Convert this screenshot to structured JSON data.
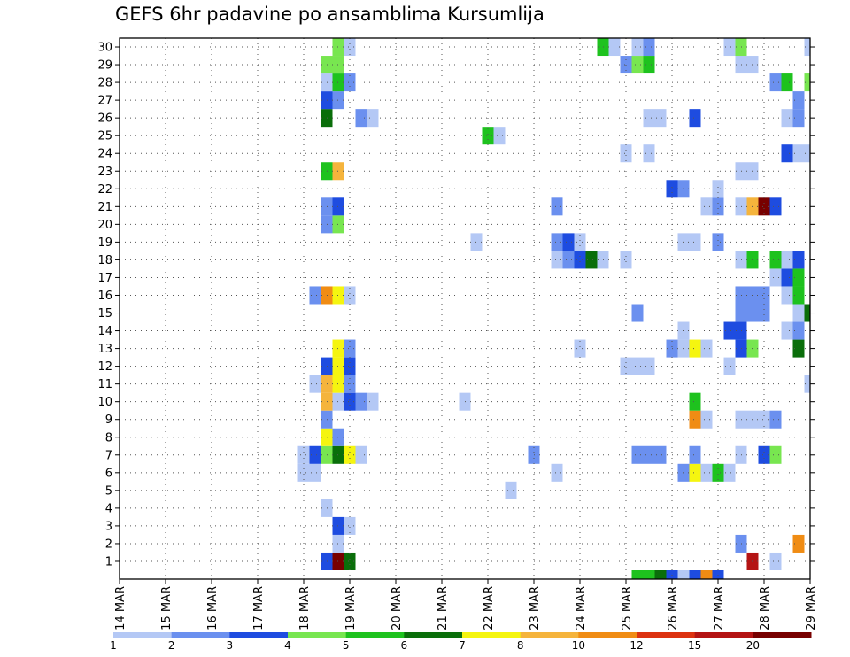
{
  "chart_data": {
    "type": "heatmap",
    "title": "GEFS 6hr padavine po ansamblima Kursumlija",
    "x_tick_labels": [
      "14 MAR",
      "15 MAR",
      "16 MAR",
      "17 MAR",
      "18 MAR",
      "19 MAR",
      "20 MAR",
      "21 MAR",
      "22 MAR",
      "23 MAR",
      "24 MAR",
      "25 MAR",
      "26 MAR",
      "27 MAR",
      "28 MAR",
      "29 MAR"
    ],
    "y_tick_labels": [
      "1",
      "2",
      "3",
      "4",
      "5",
      "6",
      "7",
      "8",
      "9",
      "10",
      "11",
      "12",
      "13",
      "14",
      "15",
      "16",
      "17",
      "18",
      "19",
      "20",
      "21",
      "22",
      "23",
      "24",
      "25",
      "26",
      "27",
      "28",
      "29",
      "30"
    ],
    "xlim": [
      0,
      60
    ],
    "ylim": [
      0,
      30
    ],
    "x_units": "6-hour steps from 14 MAR 00z",
    "y_units": "ensemble member",
    "legend_labels": [
      "1",
      "2",
      "3",
      "4",
      "5",
      "6",
      "7",
      "8",
      "10",
      "12",
      "15",
      "20"
    ],
    "colors": [
      "#b4c8f5",
      "#6b90ef",
      "#1e4ce0",
      "#78e650",
      "#1ec21e",
      "#0a6e0a",
      "#f5f510",
      "#f5b43c",
      "#f08c14",
      "#dc3210",
      "#b41414",
      "#780000"
    ],
    "cells": [
      [
        18,
        1,
        2
      ],
      [
        19,
        1,
        11
      ],
      [
        20,
        1,
        5
      ],
      [
        55,
        1,
        10
      ],
      [
        57,
        1,
        0
      ],
      [
        19,
        2,
        0
      ],
      [
        54,
        2,
        1
      ],
      [
        59,
        2,
        8
      ],
      [
        19,
        3,
        2
      ],
      [
        20,
        3,
        0
      ],
      [
        18,
        4,
        0
      ],
      [
        34,
        5,
        0
      ],
      [
        17,
        6,
        0
      ],
      [
        16,
        6,
        0
      ],
      [
        38,
        6,
        0
      ],
      [
        49,
        6,
        1
      ],
      [
        50,
        6,
        6
      ],
      [
        51,
        6,
        0
      ],
      [
        52,
        6,
        4
      ],
      [
        53,
        6,
        0
      ],
      [
        16,
        7,
        0
      ],
      [
        17,
        7,
        2
      ],
      [
        18,
        7,
        3
      ],
      [
        19,
        7,
        5
      ],
      [
        20,
        7,
        6
      ],
      [
        21,
        7,
        0
      ],
      [
        36,
        7,
        1
      ],
      [
        45,
        7,
        1
      ],
      [
        46,
        7,
        1
      ],
      [
        47,
        7,
        1
      ],
      [
        50,
        7,
        1
      ],
      [
        54,
        7,
        0
      ],
      [
        56,
        7,
        2
      ],
      [
        57,
        7,
        3
      ],
      [
        18,
        8,
        6
      ],
      [
        19,
        8,
        1
      ],
      [
        18,
        9,
        1
      ],
      [
        50,
        9,
        8
      ],
      [
        51,
        9,
        0
      ],
      [
        54,
        9,
        0
      ],
      [
        55,
        9,
        0
      ],
      [
        56,
        9,
        0
      ],
      [
        57,
        9,
        1
      ],
      [
        18,
        10,
        7
      ],
      [
        19,
        10,
        0
      ],
      [
        20,
        10,
        2
      ],
      [
        21,
        10,
        1
      ],
      [
        22,
        10,
        0
      ],
      [
        30,
        10,
        0
      ],
      [
        50,
        10,
        4
      ],
      [
        17,
        11,
        0
      ],
      [
        18,
        11,
        7
      ],
      [
        19,
        11,
        6
      ],
      [
        20,
        11,
        1
      ],
      [
        60,
        11,
        0
      ],
      [
        18,
        12,
        2
      ],
      [
        19,
        12,
        6
      ],
      [
        20,
        12,
        2
      ],
      [
        44,
        12,
        0
      ],
      [
        45,
        12,
        0
      ],
      [
        46,
        12,
        0
      ],
      [
        53,
        12,
        0
      ],
      [
        19,
        13,
        6
      ],
      [
        20,
        13,
        1
      ],
      [
        40,
        13,
        0
      ],
      [
        48,
        13,
        1
      ],
      [
        49,
        13,
        0
      ],
      [
        50,
        13,
        6
      ],
      [
        51,
        13,
        0
      ],
      [
        54,
        13,
        2
      ],
      [
        55,
        13,
        3
      ],
      [
        59,
        13,
        5
      ],
      [
        49,
        14,
        0
      ],
      [
        54,
        14,
        2
      ],
      [
        53,
        14,
        2
      ],
      [
        58,
        14,
        0
      ],
      [
        59,
        14,
        1
      ],
      [
        45,
        15,
        1
      ],
      [
        54,
        15,
        1
      ],
      [
        55,
        15,
        1
      ],
      [
        56,
        15,
        1
      ],
      [
        59,
        15,
        0
      ],
      [
        60,
        15,
        5
      ],
      [
        17,
        16,
        1
      ],
      [
        18,
        16,
        8
      ],
      [
        19,
        16,
        6
      ],
      [
        20,
        16,
        0
      ],
      [
        54,
        16,
        1
      ],
      [
        55,
        16,
        1
      ],
      [
        56,
        16,
        1
      ],
      [
        58,
        16,
        0
      ],
      [
        59,
        16,
        4
      ],
      [
        57,
        17,
        0
      ],
      [
        58,
        17,
        2
      ],
      [
        59,
        17,
        4
      ],
      [
        38,
        18,
        0
      ],
      [
        39,
        18,
        1
      ],
      [
        40,
        18,
        2
      ],
      [
        41,
        18,
        5
      ],
      [
        42,
        18,
        0
      ],
      [
        44,
        18,
        0
      ],
      [
        54,
        18,
        0
      ],
      [
        55,
        18,
        4
      ],
      [
        57,
        18,
        4
      ],
      [
        58,
        18,
        0
      ],
      [
        59,
        18,
        2
      ],
      [
        31,
        19,
        0
      ],
      [
        38,
        19,
        1
      ],
      [
        39,
        19,
        2
      ],
      [
        40,
        19,
        0
      ],
      [
        49,
        19,
        0
      ],
      [
        50,
        19,
        0
      ],
      [
        52,
        19,
        1
      ],
      [
        18,
        20,
        1
      ],
      [
        19,
        20,
        3
      ],
      [
        18,
        21,
        1
      ],
      [
        19,
        21,
        2
      ],
      [
        38,
        21,
        1
      ],
      [
        51,
        21,
        0
      ],
      [
        52,
        21,
        1
      ],
      [
        54,
        21,
        0
      ],
      [
        55,
        21,
        7
      ],
      [
        56,
        21,
        11
      ],
      [
        57,
        21,
        2
      ],
      [
        48,
        22,
        2
      ],
      [
        49,
        22,
        1
      ],
      [
        52,
        22,
        0
      ],
      [
        18,
        23,
        4
      ],
      [
        19,
        23,
        7
      ],
      [
        54,
        23,
        0
      ],
      [
        55,
        23,
        0
      ],
      [
        44,
        24,
        0
      ],
      [
        46,
        24,
        0
      ],
      [
        58,
        24,
        2
      ],
      [
        59,
        24,
        0
      ],
      [
        60,
        24,
        0
      ],
      [
        32,
        25,
        4
      ],
      [
        33,
        25,
        0
      ],
      [
        18,
        26,
        5
      ],
      [
        21,
        26,
        1
      ],
      [
        22,
        26,
        0
      ],
      [
        46,
        26,
        0
      ],
      [
        47,
        26,
        0
      ],
      [
        50,
        26,
        2
      ],
      [
        58,
        26,
        0
      ],
      [
        59,
        26,
        1
      ],
      [
        18,
        27,
        2
      ],
      [
        19,
        27,
        1
      ],
      [
        59,
        27,
        1
      ],
      [
        18,
        28,
        0
      ],
      [
        19,
        28,
        4
      ],
      [
        20,
        28,
        1
      ],
      [
        57,
        28,
        1
      ],
      [
        58,
        28,
        4
      ],
      [
        60,
        28,
        3
      ],
      [
        18,
        29,
        3
      ],
      [
        19,
        29,
        3
      ],
      [
        44,
        29,
        1
      ],
      [
        45,
        29,
        3
      ],
      [
        46,
        29,
        4
      ],
      [
        54,
        29,
        0
      ],
      [
        55,
        29,
        0
      ],
      [
        19,
        30,
        3
      ],
      [
        20,
        30,
        0
      ],
      [
        42,
        30,
        4
      ],
      [
        43,
        30,
        0
      ],
      [
        45,
        30,
        0
      ],
      [
        46,
        30,
        1
      ],
      [
        53,
        30,
        0
      ],
      [
        54,
        30,
        3
      ],
      [
        60,
        30,
        0
      ]
    ],
    "bottom_strip": [
      [
        45,
        4
      ],
      [
        46,
        4
      ],
      [
        47,
        5
      ],
      [
        48,
        2
      ],
      [
        49,
        0
      ],
      [
        50,
        2
      ],
      [
        51,
        8
      ],
      [
        52,
        2
      ]
    ]
  }
}
